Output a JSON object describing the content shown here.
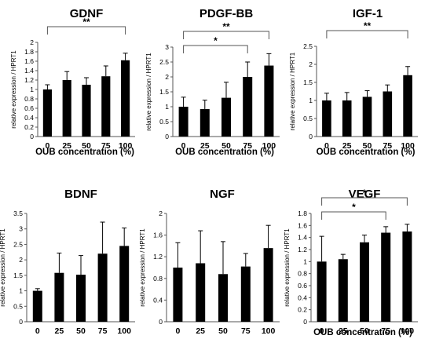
{
  "chart_data": [
    {
      "type": "bar",
      "title": "GDNF",
      "xlabel": "OUB concentration (%)",
      "ylabel": "relative expression / HPRT1",
      "categories": [
        "0",
        "25",
        "50",
        "75",
        "100"
      ],
      "values": [
        1.0,
        1.2,
        1.1,
        1.28,
        1.62
      ],
      "errors": [
        0.1,
        0.18,
        0.15,
        0.22,
        0.15
      ],
      "ylim": [
        0,
        2
      ],
      "yticks": [
        "0",
        "0.2",
        "0.4",
        "0.6",
        "0.8",
        "1",
        "1.2",
        "1.4",
        "1.6",
        "1.8",
        "2"
      ],
      "grid": false,
      "significance": [
        {
          "from": "0",
          "to": "100",
          "label": "**"
        }
      ]
    },
    {
      "type": "bar",
      "title": "PDGF-BB",
      "xlabel": "OUB concentration (%)",
      "ylabel": "relative expression / HPRT1",
      "categories": [
        "0",
        "25",
        "50",
        "75",
        "100"
      ],
      "values": [
        1.0,
        0.92,
        1.3,
        2.0,
        2.38
      ],
      "errors": [
        0.32,
        0.3,
        0.52,
        0.5,
        0.4
      ],
      "ylim": [
        0,
        3
      ],
      "yticks": [
        "0",
        "0.5",
        "1",
        "1.5",
        "2",
        "2.5",
        "3"
      ],
      "grid": false,
      "significance": [
        {
          "from": "0",
          "to": "100",
          "label": "**"
        },
        {
          "from": "0",
          "to": "75",
          "label": "*"
        }
      ]
    },
    {
      "type": "bar",
      "title": "IGF-1",
      "xlabel": "OUB concentration (%)",
      "ylabel": "relative expression / HPRT1",
      "categories": [
        "0",
        "25",
        "50",
        "75",
        "100"
      ],
      "values": [
        1.0,
        1.0,
        1.1,
        1.25,
        1.7
      ],
      "errors": [
        0.2,
        0.22,
        0.17,
        0.18,
        0.24
      ],
      "ylim": [
        0,
        2.5
      ],
      "yticks": [
        "0",
        "0.5",
        "1",
        "1.5",
        "2",
        "2.5"
      ],
      "grid": false,
      "significance": [
        {
          "from": "0",
          "to": "100",
          "label": "**"
        }
      ]
    },
    {
      "type": "bar",
      "title": "BDNF",
      "xlabel": "",
      "ylabel": "relative expression / HPRT1",
      "categories": [
        "0",
        "25",
        "50",
        "75",
        "100"
      ],
      "values": [
        1.0,
        1.58,
        1.52,
        2.2,
        2.45
      ],
      "errors": [
        0.07,
        0.64,
        0.62,
        1.02,
        0.58
      ],
      "ylim": [
        0,
        3.5
      ],
      "yticks": [
        "0",
        "0.5",
        "1",
        "1.5",
        "2",
        "2.5",
        "3",
        "3.5"
      ],
      "grid": false,
      "significance": []
    },
    {
      "type": "bar",
      "title": "NGF",
      "xlabel": "",
      "ylabel": "relative expression / HPRT1",
      "categories": [
        "0",
        "25",
        "50",
        "75",
        "100"
      ],
      "values": [
        1.0,
        1.08,
        0.88,
        1.02,
        1.36
      ],
      "errors": [
        0.46,
        0.6,
        0.6,
        0.24,
        0.42
      ],
      "ylim": [
        0,
        2
      ],
      "yticks": [
        "0",
        "0.4",
        "0.8",
        "1.2",
        "1.6",
        "2"
      ],
      "grid": false,
      "significance": []
    },
    {
      "type": "bar",
      "title": "VEGF",
      "xlabel": "OUB concentration (%)",
      "ylabel": "relative expression / HPRT1",
      "categories": [
        "0",
        "25",
        "50",
        "75",
        "100"
      ],
      "values": [
        1.0,
        1.04,
        1.32,
        1.48,
        1.5
      ],
      "errors": [
        0.42,
        0.08,
        0.12,
        0.1,
        0.12
      ],
      "ylim": [
        0,
        1.8
      ],
      "yticks": [
        "0",
        "0.2",
        "0.4",
        "0.6",
        "0.8",
        "1",
        "1.2",
        "1.4",
        "1.6",
        "1.8"
      ],
      "grid": false,
      "significance": [
        {
          "from": "0",
          "to": "100",
          "label": "*"
        },
        {
          "from": "0",
          "to": "75",
          "label": "*"
        }
      ]
    }
  ]
}
